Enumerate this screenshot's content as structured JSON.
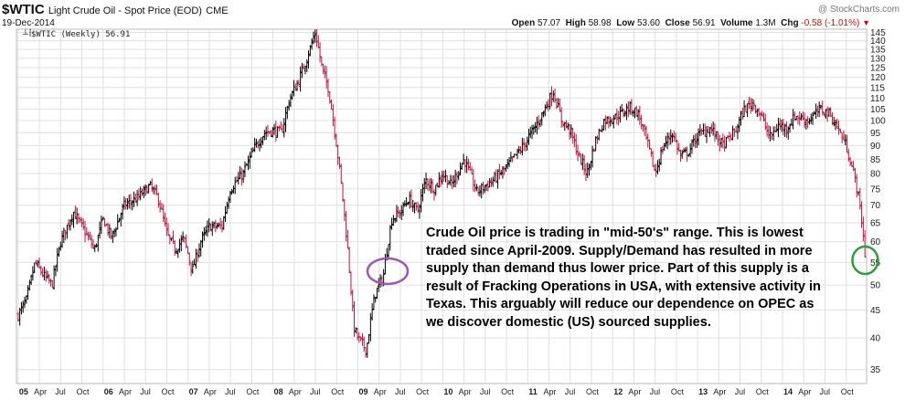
{
  "header": {
    "symbol": "$WTIC",
    "description": "Light Crude Oil - Spot Price (EOD)",
    "exchange": "CME",
    "date": "19-Dec-2014",
    "copyright": "@ StockCharts.com",
    "open_label": "Open",
    "open": "57.07",
    "high_label": "High",
    "high": "58.98",
    "low_label": "Low",
    "low": "53.60",
    "close_label": "Close",
    "close": "56.91",
    "volume_label": "Volume",
    "volume": "1.3M",
    "chg_label": "Chg",
    "chg": "-0.58 (-1.01%)"
  },
  "legend": "$WTIC (Weekly) 56.91",
  "annotation": "Crude Oil price is trading in \"mid-50's\" range.   This is lowest traded since April-2009.   Supply/Demand has resulted in more supply than demand thus lower price.  Part of this supply is a result of Fracking Operations in USA, with extensive activity in Texas.   This arguably will reduce our dependence on OPEC as we discover domestic (US) sourced supplies.",
  "colors": {
    "up": "#000000",
    "down": "#c0143c",
    "circle_purple": "#9b59b6",
    "circle_green": "#2e9e3a",
    "grid": "#e0e0e0"
  },
  "chart_data": {
    "type": "ohlc-bar",
    "period": "weekly",
    "x_range": [
      "2005-01",
      "2014-12"
    ],
    "ylim": [
      33,
      147
    ],
    "y_ticks": [
      35,
      40,
      45,
      50,
      55,
      60,
      65,
      70,
      75,
      80,
      85,
      90,
      95,
      100,
      105,
      110,
      115,
      120,
      125,
      130,
      135,
      140,
      145
    ],
    "x_tick_labels": [
      "05",
      "Apr",
      "Jul",
      "Oct",
      "06",
      "Apr",
      "Jul",
      "Oct",
      "07",
      "Apr",
      "Jul",
      "Oct",
      "08",
      "Apr",
      "Jul",
      "Oct",
      "09",
      "Apr",
      "Jul",
      "Oct",
      "10",
      "Apr",
      "Jul",
      "Oct",
      "11",
      "Apr",
      "Jul",
      "Oct",
      "12",
      "Apr",
      "Jul",
      "Oct",
      "13",
      "Apr",
      "Jul",
      "Oct",
      "14",
      "Apr",
      "Jul",
      "Oct"
    ],
    "x_tick_years": [
      2005,
      2005.25,
      2005.5,
      2005.75,
      2006,
      2006.25,
      2006.5,
      2006.75,
      2007,
      2007.25,
      2007.5,
      2007.75,
      2008,
      2008.25,
      2008.5,
      2008.75,
      2009,
      2009.25,
      2009.5,
      2009.75,
      2010,
      2010.25,
      2010.5,
      2010.75,
      2011,
      2011.25,
      2011.5,
      2011.75,
      2012,
      2012.25,
      2012.5,
      2012.75,
      2013,
      2013.25,
      2013.5,
      2013.75,
      2014,
      2014.25,
      2014.5,
      2014.75
    ],
    "close_path": [
      [
        2005.0,
        44
      ],
      [
        2005.1,
        47
      ],
      [
        2005.2,
        55
      ],
      [
        2005.3,
        52
      ],
      [
        2005.4,
        50
      ],
      [
        2005.5,
        60
      ],
      [
        2005.65,
        68
      ],
      [
        2005.8,
        62
      ],
      [
        2005.9,
        58
      ],
      [
        2006.0,
        66
      ],
      [
        2006.1,
        61
      ],
      [
        2006.25,
        70
      ],
      [
        2006.4,
        72
      ],
      [
        2006.55,
        76
      ],
      [
        2006.65,
        72
      ],
      [
        2006.75,
        62
      ],
      [
        2006.85,
        58
      ],
      [
        2006.95,
        61
      ],
      [
        2007.05,
        53
      ],
      [
        2007.15,
        60
      ],
      [
        2007.25,
        64
      ],
      [
        2007.4,
        64
      ],
      [
        2007.5,
        75
      ],
      [
        2007.65,
        80
      ],
      [
        2007.8,
        90
      ],
      [
        2007.9,
        95
      ],
      [
        2008.0,
        96
      ],
      [
        2008.1,
        95
      ],
      [
        2008.2,
        110
      ],
      [
        2008.3,
        118
      ],
      [
        2008.4,
        130
      ],
      [
        2008.5,
        145
      ],
      [
        2008.58,
        124
      ],
      [
        2008.65,
        115
      ],
      [
        2008.75,
        90
      ],
      [
        2008.85,
        65
      ],
      [
        2008.95,
        42
      ],
      [
        2009.0,
        40
      ],
      [
        2009.1,
        38
      ],
      [
        2009.2,
        48
      ],
      [
        2009.3,
        52
      ],
      [
        2009.4,
        66
      ],
      [
        2009.5,
        68
      ],
      [
        2009.6,
        72
      ],
      [
        2009.7,
        68
      ],
      [
        2009.8,
        78
      ],
      [
        2009.9,
        75
      ],
      [
        2010.0,
        80
      ],
      [
        2010.1,
        76
      ],
      [
        2010.25,
        85
      ],
      [
        2010.4,
        74
      ],
      [
        2010.5,
        76
      ],
      [
        2010.6,
        78
      ],
      [
        2010.75,
        82
      ],
      [
        2010.85,
        86
      ],
      [
        2010.95,
        90
      ],
      [
        2011.1,
        98
      ],
      [
        2011.2,
        105
      ],
      [
        2011.3,
        113
      ],
      [
        2011.4,
        100
      ],
      [
        2011.5,
        96
      ],
      [
        2011.6,
        86
      ],
      [
        2011.7,
        80
      ],
      [
        2011.8,
        92
      ],
      [
        2011.9,
        100
      ],
      [
        2012.0,
        101
      ],
      [
        2012.1,
        103
      ],
      [
        2012.2,
        106
      ],
      [
        2012.3,
        103
      ],
      [
        2012.4,
        92
      ],
      [
        2012.5,
        80
      ],
      [
        2012.6,
        90
      ],
      [
        2012.7,
        95
      ],
      [
        2012.8,
        86
      ],
      [
        2012.9,
        88
      ],
      [
        2013.0,
        94
      ],
      [
        2013.15,
        97
      ],
      [
        2013.3,
        90
      ],
      [
        2013.45,
        96
      ],
      [
        2013.55,
        105
      ],
      [
        2013.65,
        108
      ],
      [
        2013.75,
        102
      ],
      [
        2013.85,
        93
      ],
      [
        2013.95,
        98
      ],
      [
        2014.05,
        97
      ],
      [
        2014.15,
        102
      ],
      [
        2014.3,
        100
      ],
      [
        2014.45,
        105
      ],
      [
        2014.55,
        103
      ],
      [
        2014.65,
        97
      ],
      [
        2014.75,
        90
      ],
      [
        2014.82,
        82
      ],
      [
        2014.88,
        75
      ],
      [
        2014.93,
        66
      ],
      [
        2014.97,
        57
      ]
    ]
  }
}
